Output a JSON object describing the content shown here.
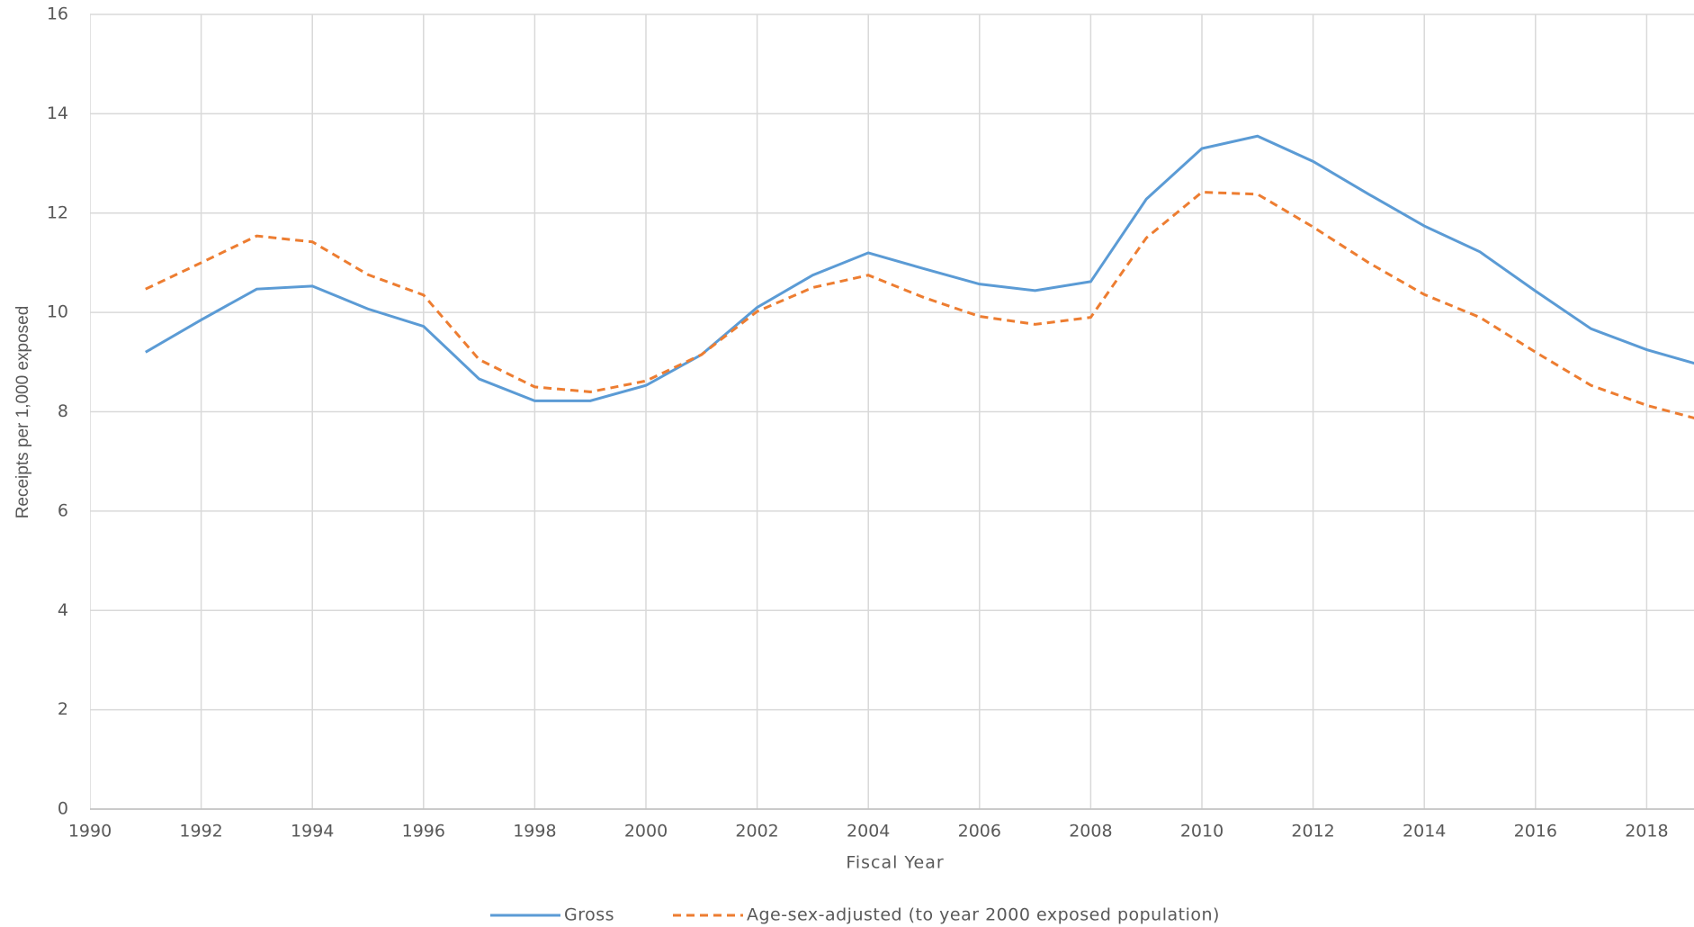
{
  "chart_data": {
    "type": "line",
    "x_label": "Fiscal Year",
    "y_label": "Receipts per 1,000 exposed",
    "x": [
      1991,
      1992,
      1993,
      1994,
      1995,
      1996,
      1997,
      1998,
      1999,
      2000,
      2001,
      2002,
      2003,
      2004,
      2005,
      2006,
      2007,
      2008,
      2009,
      2010,
      2011,
      2012,
      2013,
      2014,
      2015,
      2016,
      2017,
      2018,
      2019
    ],
    "series": [
      {
        "name": "Gross",
        "color": "#5b9bd5",
        "linestyle": "solid",
        "values": [
          9.2,
          9.85,
          10.47,
          10.53,
          10.07,
          9.72,
          8.66,
          8.22,
          8.22,
          8.53,
          9.15,
          10.1,
          10.75,
          11.2,
          10.88,
          10.57,
          10.44,
          10.62,
          12.28,
          13.3,
          13.55,
          13.04,
          12.38,
          11.74,
          11.22,
          10.43,
          9.67,
          9.25,
          8.93
        ]
      },
      {
        "name": "Age-sex-adjusted (to year 2000 exposed population)",
        "color": "#ed7d31",
        "linestyle": "dashed",
        "values": [
          10.47,
          11.0,
          11.54,
          11.42,
          10.76,
          10.35,
          9.05,
          8.5,
          8.4,
          8.62,
          9.15,
          10.02,
          10.5,
          10.75,
          10.3,
          9.92,
          9.76,
          9.9,
          11.5,
          12.42,
          12.38,
          11.72,
          11.0,
          10.36,
          9.9,
          9.2,
          8.53,
          8.13,
          7.83
        ]
      }
    ],
    "xlim": [
      1990,
      2020
    ],
    "xticks": [
      1990,
      1992,
      1994,
      1996,
      1998,
      2000,
      2002,
      2004,
      2006,
      2008,
      2010,
      2012,
      2014,
      2016,
      2018
    ],
    "ylim": [
      0,
      16
    ],
    "yticks": [
      0,
      2,
      4,
      6,
      8,
      10,
      12,
      14,
      16
    ],
    "grid": true,
    "legend": "bottom"
  }
}
